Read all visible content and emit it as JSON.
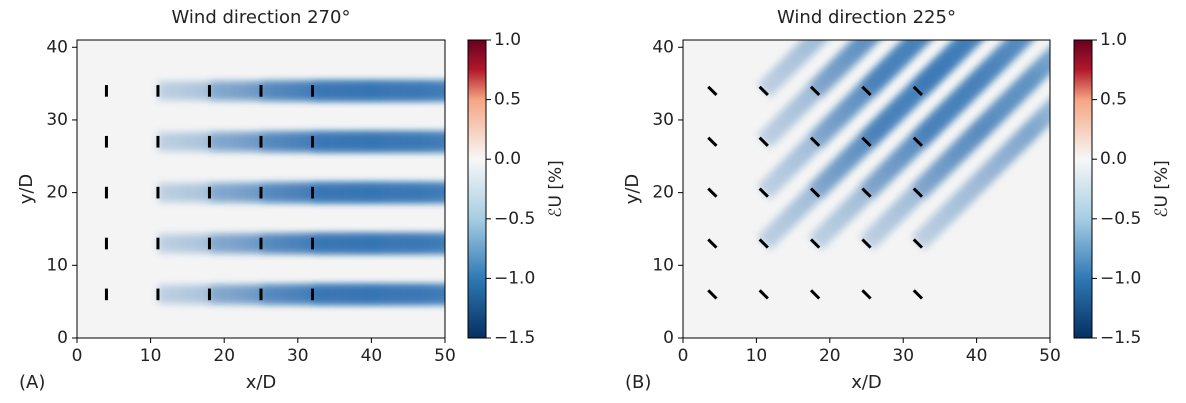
{
  "chart_data": [
    {
      "type": "heatmap",
      "title": "Wind direction 270°",
      "panel_label": "(A)",
      "xlabel": "x/D",
      "ylabel": "y/D",
      "wind_direction": 270,
      "xlim": [
        0,
        50
      ],
      "ylim": [
        0,
        41
      ],
      "xticks": [
        0,
        10,
        20,
        30,
        40,
        50
      ],
      "yticks": [
        0,
        10,
        20,
        30,
        40
      ],
      "turbines": {
        "x": [
          4,
          4,
          4,
          4,
          4,
          11,
          11,
          11,
          11,
          11,
          18,
          18,
          18,
          18,
          18,
          25,
          25,
          25,
          25,
          25,
          32,
          32,
          32,
          32,
          32
        ],
        "y": [
          6,
          13,
          20,
          27,
          34,
          6,
          13,
          20,
          27,
          34,
          6,
          13,
          20,
          27,
          34,
          6,
          13,
          20,
          27,
          34,
          6,
          13,
          20,
          27,
          34
        ]
      },
      "colorbar": {
        "label": "ℰU [%]",
        "lim": [
          -1.5,
          1.0
        ],
        "ticks": [
          {
            "value": 1.0,
            "label": "1.0"
          },
          0.5,
          {
            "value": 0,
            "label": "0.0"
          },
          {
            "value": -0.5,
            "label": "−0.5"
          },
          {
            "value": -1.0,
            "label": "−1.0"
          },
          {
            "value": -1.5,
            "label": "−1.5"
          }
        ]
      }
    },
    {
      "type": "heatmap",
      "title": "Wind direction 225°",
      "panel_label": "(B)",
      "xlabel": "x/D",
      "ylabel": "y/D",
      "wind_direction": 225,
      "xlim": [
        0,
        50
      ],
      "ylim": [
        0,
        41
      ],
      "xticks": [
        0,
        10,
        20,
        30,
        40,
        50
      ],
      "yticks": [
        0,
        10,
        20,
        30,
        40
      ],
      "turbines": {
        "x": [
          4,
          4,
          4,
          4,
          4,
          11,
          11,
          11,
          11,
          11,
          18,
          18,
          18,
          18,
          18,
          25,
          25,
          25,
          25,
          25,
          32,
          32,
          32,
          32,
          32
        ],
        "y": [
          6,
          13,
          20,
          27,
          34,
          6,
          13,
          20,
          27,
          34,
          6,
          13,
          20,
          27,
          34,
          6,
          13,
          20,
          27,
          34,
          6,
          13,
          20,
          27,
          34
        ]
      },
      "colorbar": {
        "label": "ℰU [%]",
        "lim": [
          -1.5,
          1.0
        ],
        "ticks": [
          {
            "value": 1.0,
            "label": "1.0"
          },
          0.5,
          {
            "value": 0,
            "label": "0.0"
          },
          {
            "value": -0.5,
            "label": "−0.5"
          },
          {
            "value": -1.0,
            "label": "−1.0"
          },
          {
            "value": -1.5,
            "label": "−1.5"
          }
        ]
      }
    }
  ]
}
